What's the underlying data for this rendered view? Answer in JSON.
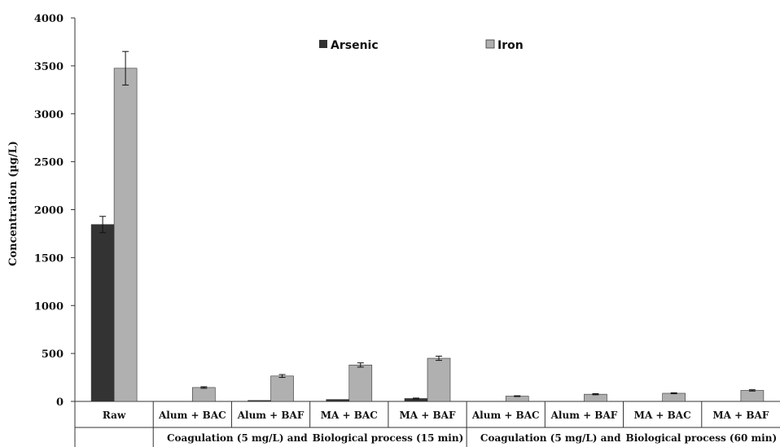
{
  "chart_data": {
    "type": "bar",
    "ylabel": "Concentration (µg/L)",
    "ylim": [
      0,
      4000
    ],
    "yticks": [
      0,
      500,
      1000,
      1500,
      2000,
      2500,
      3000,
      3500,
      4000
    ],
    "grid": false,
    "legend_position": "top-center",
    "categories": [
      "Raw",
      "Alum + BAC",
      "Alum + BAF",
      "MA + BAC",
      "MA + BAF",
      "Alum + BAC",
      "Alum + BAF",
      "MA + BAC",
      "MA + BAF"
    ],
    "groups": [
      {
        "label_parts": [
          "Coagulation (5 mg/L) and",
          "Biological process (15 min)"
        ],
        "from": 1,
        "to": 4
      },
      {
        "label_parts": [
          "Coagulation (5 mg/L) and",
          "Biological process (60 min)"
        ],
        "from": 5,
        "to": 8
      }
    ],
    "series": [
      {
        "name": "Arsenic",
        "color": "#333333",
        "values": [
          1845,
          0,
          10,
          20,
          30,
          0,
          0,
          0,
          0
        ],
        "errors": [
          85,
          0,
          0,
          0,
          5,
          0,
          0,
          0,
          0
        ]
      },
      {
        "name": "Iron",
        "color": "#b0b0b0",
        "values": [
          3475,
          145,
          265,
          380,
          450,
          55,
          75,
          85,
          115
        ],
        "errors": [
          175,
          8,
          15,
          22,
          22,
          4,
          6,
          5,
          7
        ]
      }
    ]
  }
}
